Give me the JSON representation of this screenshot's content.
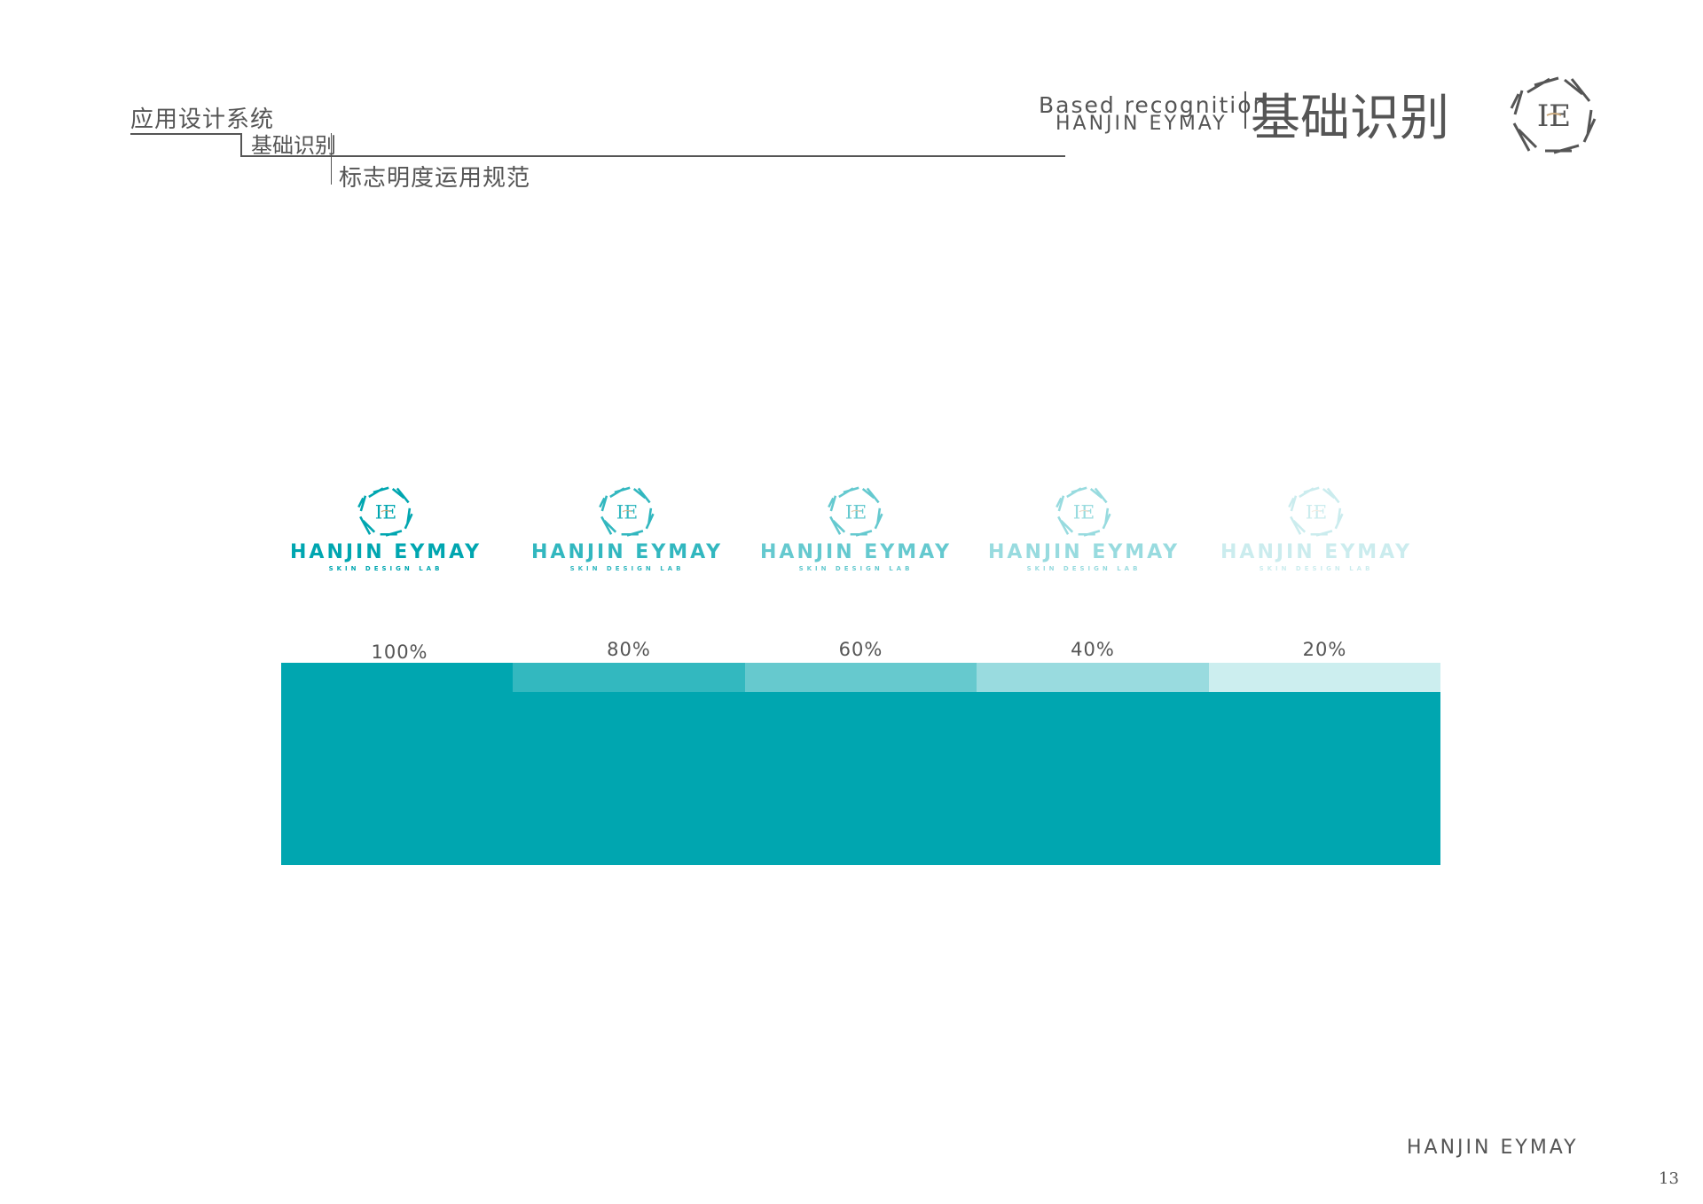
{
  "header": {
    "level1": "应用设计系统",
    "level2": "基础识别",
    "level3": "标志明度运用规范",
    "section_en": "Based recognition",
    "brand": "HANJIN EYMAY",
    "section_cn": "基础识别",
    "logo_mark": "HE"
  },
  "logos": [
    {
      "brand": "HANJIN EYMAY",
      "tagline": "SKIN DESIGN LAB",
      "opacity": 1.0,
      "label": "100%",
      "color": "#00a6b0"
    },
    {
      "brand": "HANJIN EYMAY",
      "tagline": "SKIN DESIGN LAB",
      "opacity": 0.8,
      "label": "80%",
      "color": "#33b8bf"
    },
    {
      "brand": "HANJIN EYMAY",
      "tagline": "SKIN DESIGN LAB",
      "opacity": 0.6,
      "label": "60%",
      "color": "#66c9ce"
    },
    {
      "brand": "HANJIN EYMAY",
      "tagline": "SKIN DESIGN LAB",
      "opacity": 0.4,
      "label": "40%",
      "color": "#99dbdf"
    },
    {
      "brand": "HANJIN EYMAY",
      "tagline": "SKIN DESIGN LAB",
      "opacity": 0.2,
      "label": "20%",
      "color": "#cceeef"
    }
  ],
  "colors": {
    "brand_teal": "#00a6b0",
    "text_gray": "#555555",
    "accent_gold": "#c9a77a"
  },
  "footer": {
    "brand": "HANJIN EYMAY",
    "page_number": "13"
  }
}
